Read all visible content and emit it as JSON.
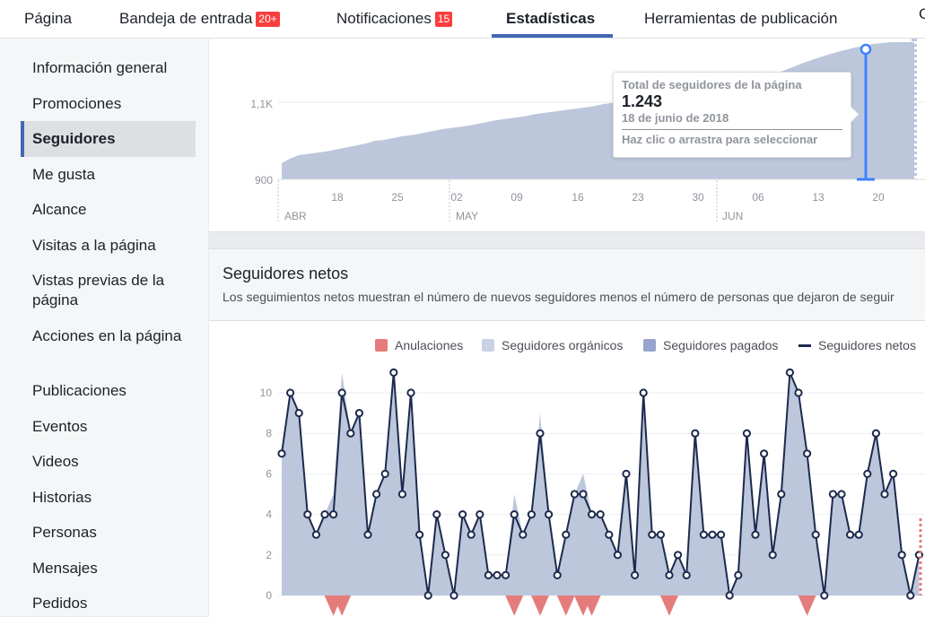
{
  "nav": {
    "tabs": [
      {
        "label": "Página",
        "badge": ""
      },
      {
        "label": "Bandeja de entrada",
        "badge": "20+"
      },
      {
        "label": "Notificaciones",
        "badge": "15"
      },
      {
        "label": "Estadísticas",
        "badge": ""
      },
      {
        "label": "Herramientas de publicación",
        "badge": ""
      }
    ],
    "cut_label": "C"
  },
  "sidebar": {
    "items": [
      "Información general",
      "Promociones",
      "Seguidores",
      "Me gusta",
      "Alcance",
      "Visitas a la página",
      "Vistas previas de la página",
      "Acciones en la página",
      "Publicaciones",
      "Eventos",
      "Videos",
      "Historias",
      "Personas",
      "Mensajes",
      "Pedidos"
    ],
    "active_index": 2
  },
  "overview_chart": {
    "y_ticks": [
      "1,1K",
      "900"
    ],
    "x_ticks": [
      "18",
      "25",
      "02",
      "09",
      "16",
      "23",
      "30",
      "06",
      "13",
      "20"
    ],
    "months": [
      "ABR",
      "MAY",
      "JUN"
    ],
    "tooltip": {
      "title": "Total de seguidores de la página",
      "value": "1.243",
      "date": "18 de junio de 2018",
      "hint": "Haz clic o arrastra para seleccionar"
    }
  },
  "net_section": {
    "title": "Seguidores netos",
    "description": "Los seguimientos netos muestran el número de nuevos seguidores menos el número de personas que dejaron de seguir",
    "legend": {
      "unfollows": "Anulaciones",
      "organic": "Seguidores orgánicos",
      "paid": "Seguidores pagados",
      "net": "Seguidores netos"
    }
  },
  "colors": {
    "accent": "#4267b2",
    "badge": "#fa3e3e",
    "area": "#bcc7dc",
    "net_line": "#1d2a4e",
    "unfollow": "#e47c7c"
  },
  "chart_data": {
    "type": "line",
    "ylim": [
      0,
      11
    ],
    "y_ticks": [
      0,
      2,
      4,
      6,
      8,
      10
    ],
    "series": [
      {
        "name": "Seguidores netos",
        "values": [
          7,
          10,
          9,
          4,
          3,
          4,
          4,
          10,
          8,
          9,
          3,
          5,
          6,
          11,
          5,
          10,
          3,
          0,
          4,
          2,
          0,
          4,
          3,
          4,
          1,
          1,
          1,
          4,
          3,
          4,
          8,
          4,
          1,
          3,
          5,
          5,
          4,
          4,
          3,
          2,
          6,
          1,
          10,
          3,
          3,
          1,
          2,
          1,
          8,
          3,
          3,
          3,
          0,
          1,
          8,
          3,
          7,
          2,
          5,
          11,
          10,
          7,
          3,
          0,
          5,
          5,
          3,
          3,
          6,
          8,
          5,
          6,
          2,
          0,
          2
        ]
      },
      {
        "name": "Seguidores orgánicos",
        "values": [
          7,
          10,
          9,
          4,
          3,
          4,
          5,
          11,
          8,
          9,
          3,
          5,
          6,
          11,
          5,
          10,
          3,
          0,
          4,
          2,
          0,
          4,
          3,
          4,
          1,
          1,
          1,
          5,
          3,
          4,
          9,
          4,
          1,
          3,
          5,
          6,
          4,
          4,
          3,
          2,
          6,
          1,
          10,
          3,
          3,
          1,
          2,
          1,
          8,
          3,
          3,
          3,
          0,
          1,
          8,
          3,
          7,
          2,
          5,
          11,
          10,
          7,
          3,
          0,
          5,
          5,
          3,
          3,
          6,
          8,
          5,
          6,
          2,
          0,
          2
        ]
      },
      {
        "name": "Anulaciones",
        "values": [
          0,
          0,
          0,
          0,
          0,
          0,
          -1,
          -1,
          0,
          0,
          0,
          0,
          0,
          0,
          0,
          0,
          0,
          0,
          0,
          0,
          0,
          0,
          0,
          0,
          0,
          0,
          0,
          -1,
          0,
          0,
          -1,
          0,
          0,
          -1,
          0,
          -1,
          -1,
          0,
          0,
          0,
          0,
          0,
          0,
          0,
          0,
          -1,
          0,
          0,
          0,
          0,
          0,
          0,
          0,
          0,
          0,
          0,
          0,
          0,
          0,
          0,
          0,
          -1,
          0,
          0,
          0,
          0,
          0,
          0,
          0,
          0,
          0,
          0,
          0,
          0,
          0
        ]
      }
    ]
  }
}
